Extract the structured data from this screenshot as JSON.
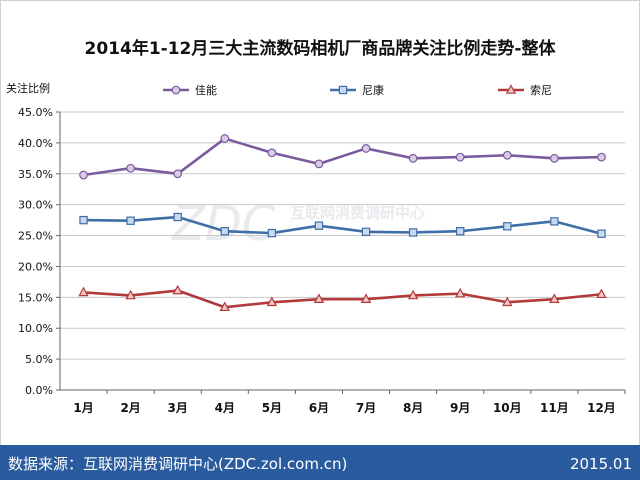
{
  "chart_data": {
    "type": "line",
    "title": "2014年1-12月三大主流数码相机厂商品牌关注比例走势-整体",
    "ylabel": "关注比例",
    "xlabel": "",
    "categories": [
      "1月",
      "2月",
      "3月",
      "4月",
      "5月",
      "6月",
      "7月",
      "8月",
      "9月",
      "10月",
      "11月",
      "12月"
    ],
    "yticks": [
      "0.0%",
      "5.0%",
      "10.0%",
      "15.0%",
      "20.0%",
      "25.0%",
      "30.0%",
      "35.0%",
      "40.0%",
      "45.0%"
    ],
    "ylim": [
      0,
      45
    ],
    "grid": true,
    "legend_position": "top",
    "series": [
      {
        "name": "佳能",
        "marker": "circle",
        "color": "#7b5a9e",
        "fill": "#d9cce8",
        "values": [
          34.8,
          35.9,
          35.0,
          40.7,
          38.4,
          36.6,
          39.1,
          37.5,
          37.7,
          38.0,
          37.5,
          37.7
        ]
      },
      {
        "name": "尼康",
        "marker": "square",
        "color": "#3f6fa6",
        "fill": "#c9daf0",
        "values": [
          27.5,
          27.4,
          28.0,
          25.7,
          25.4,
          26.6,
          25.6,
          25.5,
          25.7,
          26.5,
          27.3,
          25.3
        ]
      },
      {
        "name": "索尼",
        "marker": "triangle",
        "color": "#b33a3a",
        "fill": "#f0c8c8",
        "values": [
          15.8,
          15.3,
          16.1,
          13.4,
          14.2,
          14.7,
          14.7,
          15.3,
          15.6,
          14.2,
          14.7,
          15.5
        ]
      }
    ]
  },
  "watermark": {
    "logo": "ZDC",
    "text": "互联网消费调研中心"
  },
  "footer": {
    "source": "数据来源：互联网消费调研中心(ZDC.zol.com.cn)",
    "date": "2015.01"
  },
  "colors": {
    "footer_bar": "#2a5b9e",
    "footer_text": "#ffffff",
    "grid": "#c8c8c8"
  }
}
